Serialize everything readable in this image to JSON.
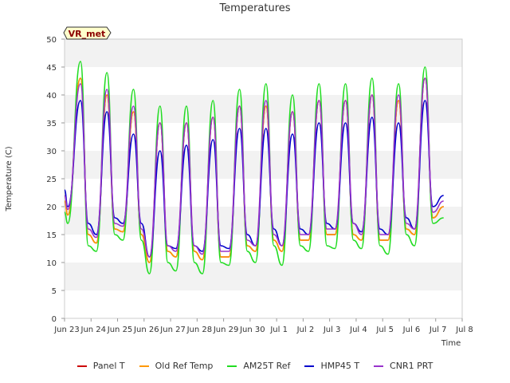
{
  "chart_data": {
    "type": "line",
    "title": "Temperatures",
    "xlabel": "Time",
    "ylabel": "Temperature (C)",
    "ylim": [
      0,
      50
    ],
    "yticks": [
      0,
      5,
      10,
      15,
      20,
      25,
      30,
      35,
      40,
      45,
      50
    ],
    "xticks": [
      "Jun 23",
      "Jun 24",
      "Jun 25",
      "Jun 26",
      "Jun 27",
      "Jun 28",
      "Jun 29",
      "Jun 30",
      "Jul 1",
      "Jul 2",
      "Jul 3",
      "Jul 4",
      "Jul 5",
      "Jul 6",
      "Jul 7",
      "Jul 8"
    ],
    "xlim": [
      0,
      15
    ],
    "badge": "VR_met",
    "grid": "horizontal bands",
    "legend_position": "bottom",
    "x_units": "days since Jun 23 (sampled at daily min/max)",
    "series": [
      {
        "name": "Panel T",
        "color": "#cc0000",
        "x": [
          0.0,
          0.12,
          0.6,
          0.9,
          1.2,
          1.6,
          1.9,
          2.2,
          2.6,
          2.9,
          3.2,
          3.6,
          3.9,
          4.2,
          4.6,
          4.9,
          5.2,
          5.6,
          5.9,
          6.2,
          6.6,
          6.9,
          7.2,
          7.6,
          7.9,
          8.2,
          8.6,
          8.9,
          9.2,
          9.6,
          9.9,
          10.2,
          10.6,
          10.9,
          11.2,
          11.6,
          11.9,
          12.2,
          12.6,
          12.9,
          13.2,
          13.6,
          13.9,
          14.3
        ],
        "y": [
          21,
          18.5,
          43,
          15,
          13.5,
          40,
          16,
          15.5,
          37,
          15,
          10,
          35,
          12,
          11,
          35,
          12,
          10.5,
          36,
          11,
          11,
          38,
          13,
          12,
          38,
          14,
          12,
          37,
          14,
          14,
          39,
          15,
          15,
          39,
          15,
          14,
          40,
          14,
          14,
          39,
          16,
          15,
          43,
          18,
          20
        ]
      },
      {
        "name": "Old Ref Temp",
        "color": "#ff9900",
        "x": [
          0.0,
          0.12,
          0.6,
          0.9,
          1.2,
          1.6,
          1.9,
          2.2,
          2.6,
          2.9,
          3.2,
          3.6,
          3.9,
          4.2,
          4.6,
          4.9,
          5.2,
          5.6,
          5.9,
          6.2,
          6.6,
          6.9,
          7.2,
          7.6,
          7.9,
          8.2,
          8.6,
          8.9,
          9.2,
          9.6,
          9.9,
          10.2,
          10.6,
          10.9,
          11.2,
          11.6,
          11.9,
          12.2,
          12.6,
          12.9,
          13.2,
          13.6,
          13.9,
          14.3
        ],
        "y": [
          21,
          18.5,
          43,
          15,
          13.5,
          40,
          16,
          15.5,
          37,
          15,
          10,
          35,
          12,
          11,
          35,
          12,
          10.5,
          36,
          11,
          11,
          38,
          13,
          12,
          38,
          14,
          12,
          37,
          14,
          14,
          39,
          15,
          15,
          39,
          15,
          14,
          40,
          14,
          14,
          39,
          16,
          15,
          43,
          18,
          20
        ]
      },
      {
        "name": "AM25T Ref",
        "color": "#22dd22",
        "x": [
          0.0,
          0.12,
          0.6,
          0.9,
          1.2,
          1.6,
          1.9,
          2.2,
          2.6,
          2.9,
          3.2,
          3.6,
          3.9,
          4.2,
          4.6,
          4.9,
          5.2,
          5.6,
          5.9,
          6.2,
          6.6,
          6.9,
          7.2,
          7.6,
          7.9,
          8.2,
          8.6,
          8.9,
          9.2,
          9.6,
          9.9,
          10.2,
          10.6,
          10.9,
          11.2,
          11.6,
          11.9,
          12.2,
          12.6,
          12.9,
          13.2,
          13.6,
          13.9,
          14.3
        ],
        "y": [
          19,
          17,
          46,
          13,
          12,
          44,
          15,
          14,
          41,
          14,
          8,
          38,
          10,
          8.5,
          38,
          10,
          8,
          39,
          10,
          9.5,
          41,
          12,
          10,
          42,
          13,
          9.5,
          40,
          13,
          12,
          42,
          13,
          12.5,
          42,
          14,
          12.5,
          43,
          13,
          11.5,
          42,
          15,
          13,
          45,
          17,
          18
        ]
      },
      {
        "name": "HMP45 T",
        "color": "#0000cc",
        "x": [
          0.0,
          0.12,
          0.6,
          0.9,
          1.2,
          1.6,
          1.9,
          2.2,
          2.6,
          2.9,
          3.2,
          3.6,
          3.9,
          4.2,
          4.6,
          4.9,
          5.2,
          5.6,
          5.9,
          6.2,
          6.6,
          6.9,
          7.2,
          7.6,
          7.9,
          8.2,
          8.6,
          8.9,
          9.2,
          9.6,
          9.9,
          10.2,
          10.6,
          10.9,
          11.2,
          11.6,
          11.9,
          12.2,
          12.6,
          12.9,
          13.2,
          13.6,
          13.9,
          14.3
        ],
        "y": [
          23,
          20,
          39,
          17,
          15,
          37,
          18,
          17,
          33,
          17,
          11,
          30,
          13,
          12.5,
          31,
          13,
          12,
          32,
          13,
          12.5,
          34,
          15,
          13,
          34,
          16,
          13,
          33,
          16,
          15,
          35,
          17,
          16,
          35,
          17,
          15.5,
          36,
          16,
          15,
          35,
          18,
          16,
          39,
          20,
          22
        ]
      },
      {
        "name": "CNR1 PRT",
        "color": "#9933cc",
        "x": [
          0.0,
          0.12,
          0.6,
          0.9,
          1.2,
          1.6,
          1.9,
          2.2,
          2.6,
          2.9,
          3.2,
          3.6,
          3.9,
          4.2,
          4.6,
          4.9,
          5.2,
          5.6,
          5.9,
          6.2,
          6.6,
          6.9,
          7.2,
          7.6,
          7.9,
          8.2,
          8.6,
          8.9,
          9.2,
          9.6,
          9.9,
          10.2,
          10.6,
          10.9,
          11.2,
          11.6,
          11.9,
          12.2,
          12.6,
          12.9,
          13.2,
          13.6,
          13.9,
          14.3
        ],
        "y": [
          22,
          19.5,
          42,
          16,
          14.5,
          41,
          17,
          16.5,
          38,
          16,
          11,
          35,
          13,
          12,
          35,
          13,
          11.5,
          36,
          12,
          12,
          38,
          14,
          13,
          39,
          15,
          13,
          37,
          15,
          15,
          39,
          16,
          16,
          39,
          17,
          15,
          40,
          15,
          15,
          40,
          17,
          16,
          43,
          19,
          21
        ]
      }
    ]
  }
}
